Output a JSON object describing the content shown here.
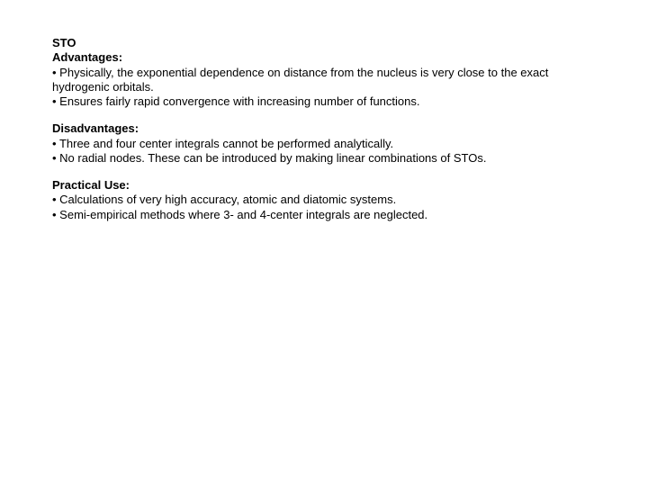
{
  "title": "STO",
  "sections": [
    {
      "heading": "Advantages:",
      "items": [
        "Physically, the exponential dependence on distance from the nucleus is very close to the exact hydrogenic orbitals.",
        "Ensures fairly rapid convergence with increasing number of functions."
      ]
    },
    {
      "heading": "Disadvantages:",
      "items": [
        "Three and four center integrals cannot be performed analytically.",
        "No radial nodes.  These can be introduced by making linear combinations of STOs."
      ]
    },
    {
      "heading": "Practical Use:",
      "items": [
        "Calculations of very high accuracy, atomic and diatomic systems.",
        "Semi-empirical methods where 3- and 4-center integrals are neglected."
      ]
    }
  ],
  "bullet": " • ",
  "colors": {
    "text": "#000000",
    "background": "#ffffff"
  },
  "font": {
    "family": "Arial",
    "size_pt": 10
  }
}
